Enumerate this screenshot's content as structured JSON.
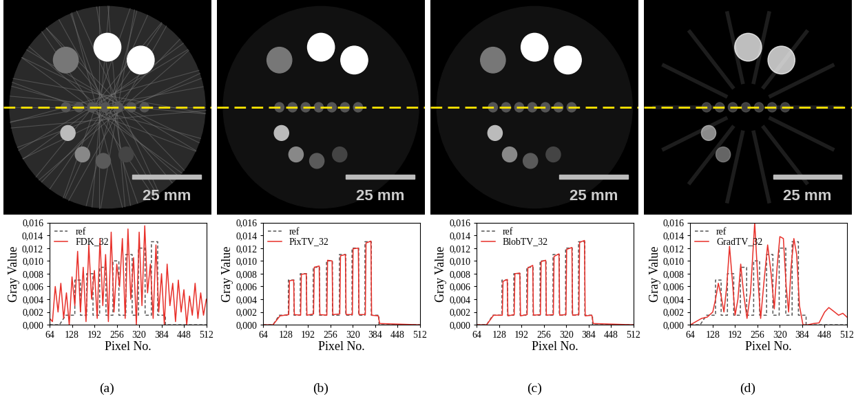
{
  "chart_data": [
    {
      "type": "line",
      "caption": "(a)",
      "scale_bar": "25 mm",
      "x_label": "Pixel No.",
      "y_label": "Gray Value",
      "xlim": [
        64,
        512
      ],
      "xticks": [
        64,
        128,
        192,
        256,
        320,
        384,
        448,
        512
      ],
      "ylim": [
        0,
        0.016
      ],
      "yticks": [
        {
          "value": 0,
          "label": "0,000"
        },
        {
          "value": 0.002,
          "label": "0,002"
        },
        {
          "value": 0.004,
          "label": "0,004"
        },
        {
          "value": 0.006,
          "label": "0,006"
        },
        {
          "value": 0.008,
          "label": "0,008"
        },
        {
          "value": 0.01,
          "label": "0,010"
        },
        {
          "value": 0.012,
          "label": "0,012"
        },
        {
          "value": 0.014,
          "label": "0,014"
        },
        {
          "value": 0.016,
          "label": "0,016"
        }
      ],
      "grid": false,
      "legend": "upper left",
      "series": [
        {
          "name": "ref",
          "color": "#555555",
          "line_style": "dashed",
          "x": [
            64,
            92,
            110,
            136,
            136,
            152,
            152,
            170,
            170,
            188,
            188,
            207,
            207,
            225,
            225,
            245,
            245,
            262,
            262,
            282,
            282,
            300,
            300,
            318,
            318,
            337,
            337,
            355,
            355,
            373,
            373,
            395,
            395,
            512
          ],
          "values": [
            0,
            0,
            0.0015,
            0.0015,
            0.007,
            0.007,
            0.0015,
            0.0015,
            0.008,
            0.008,
            0.0015,
            0.0015,
            0.009,
            0.009,
            0.0015,
            0.0015,
            0.01,
            0.01,
            0.0015,
            0.0015,
            0.011,
            0.011,
            0.0015,
            0.0015,
            0.012,
            0.012,
            0.0015,
            0.0015,
            0.013,
            0.013,
            0.0015,
            0.0015,
            0,
            0
          ]
        },
        {
          "name": "FDK_32",
          "color": "#e8302a",
          "line_style": "solid",
          "x": [
            64,
            72,
            80,
            88,
            96,
            104,
            112,
            120,
            128,
            136,
            144,
            152,
            160,
            168,
            176,
            184,
            192,
            200,
            208,
            216,
            224,
            232,
            240,
            248,
            256,
            264,
            272,
            280,
            288,
            296,
            304,
            312,
            320,
            328,
            336,
            344,
            352,
            360,
            368,
            376,
            384,
            392,
            400,
            408,
            416,
            424,
            432,
            440,
            448,
            456,
            464,
            472,
            480,
            488,
            496,
            504,
            512
          ],
          "values": [
            0.001,
            0.0005,
            0.006,
            0.002,
            0.0065,
            0.001,
            0.005,
            0.0,
            0.0075,
            0.003,
            0.0115,
            0.002,
            0.009,
            0.0005,
            0.0125,
            0.004,
            0.0085,
            0.001,
            0.0135,
            0.003,
            0.011,
            0.0005,
            0.0145,
            0.002,
            0.0095,
            0.006,
            0.0135,
            0.001,
            0.015,
            0.004,
            0.0105,
            0.0,
            0.0145,
            0.003,
            0.0155,
            0.005,
            0.0095,
            0.001,
            0.0125,
            0.002,
            0.008,
            0.0,
            0.0095,
            0.003,
            0.0065,
            0.0005,
            0.007,
            0.002,
            0.0055,
            0.0,
            0.0045,
            0.0015,
            0.0065,
            0.001,
            0.005,
            0.0015,
            0.004
          ]
        }
      ]
    },
    {
      "type": "line",
      "caption": "(b)",
      "scale_bar": "25 mm",
      "x_label": "Pixel No.",
      "y_label": "Gray Value",
      "xlim": [
        64,
        512
      ],
      "xticks": [
        64,
        128,
        192,
        256,
        320,
        384,
        448,
        512
      ],
      "ylim": [
        0,
        0.016
      ],
      "yticks": [
        {
          "value": 0,
          "label": "0,000"
        },
        {
          "value": 0.002,
          "label": "0,002"
        },
        {
          "value": 0.004,
          "label": "0,004"
        },
        {
          "value": 0.006,
          "label": "0,006"
        },
        {
          "value": 0.008,
          "label": "0,008"
        },
        {
          "value": 0.01,
          "label": "0,010"
        },
        {
          "value": 0.012,
          "label": "0,012"
        },
        {
          "value": 0.014,
          "label": "0,014"
        },
        {
          "value": 0.016,
          "label": "0,016"
        }
      ],
      "grid": false,
      "legend": "upper left",
      "series": [
        {
          "name": "ref",
          "color": "#555555",
          "line_style": "dashed",
          "x": [
            64,
            92,
            110,
            136,
            136,
            152,
            152,
            170,
            170,
            188,
            188,
            207,
            207,
            225,
            225,
            245,
            245,
            262,
            262,
            282,
            282,
            300,
            300,
            318,
            318,
            337,
            337,
            355,
            355,
            373,
            373,
            395,
            395,
            512
          ],
          "values": [
            0,
            0,
            0.0015,
            0.0015,
            0.007,
            0.007,
            0.0015,
            0.0015,
            0.008,
            0.008,
            0.0015,
            0.0015,
            0.009,
            0.009,
            0.0015,
            0.0015,
            0.01,
            0.01,
            0.0015,
            0.0015,
            0.011,
            0.011,
            0.0015,
            0.0015,
            0.012,
            0.012,
            0.0015,
            0.0015,
            0.013,
            0.013,
            0.0015,
            0.0015,
            0,
            0
          ]
        },
        {
          "name": "PixTV_32",
          "color": "#e8302a",
          "line_style": "solid",
          "x": [
            64,
            92,
            112,
            137,
            139,
            151,
            153,
            171,
            173,
            187,
            189,
            208,
            210,
            224,
            226,
            246,
            248,
            261,
            263,
            283,
            285,
            299,
            301,
            319,
            321,
            336,
            338,
            356,
            358,
            372,
            374,
            393,
            397,
            512
          ],
          "values": [
            0,
            0,
            0.0014,
            0.0016,
            0.0069,
            0.007,
            0.0016,
            0.0015,
            0.0079,
            0.008,
            0.0015,
            0.0017,
            0.009,
            0.0092,
            0.0016,
            0.0015,
            0.0101,
            0.01,
            0.0016,
            0.0017,
            0.0108,
            0.011,
            0.0016,
            0.0016,
            0.0119,
            0.012,
            0.0016,
            0.0016,
            0.0128,
            0.0131,
            0.0015,
            0.0014,
            0.0002,
            0
          ]
        }
      ]
    },
    {
      "type": "line",
      "caption": "(c)",
      "scale_bar": "25 mm",
      "x_label": "Pixel No.",
      "y_label": "Gray Value",
      "xlim": [
        64,
        512
      ],
      "xticks": [
        64,
        128,
        192,
        256,
        320,
        384,
        448,
        512
      ],
      "ylim": [
        0,
        0.016
      ],
      "yticks": [
        {
          "value": 0,
          "label": "0,000"
        },
        {
          "value": 0.002,
          "label": "0,002"
        },
        {
          "value": 0.004,
          "label": "0,004"
        },
        {
          "value": 0.006,
          "label": "0,006"
        },
        {
          "value": 0.008,
          "label": "0,008"
        },
        {
          "value": 0.01,
          "label": "0,010"
        },
        {
          "value": 0.012,
          "label": "0,012"
        },
        {
          "value": 0.014,
          "label": "0,014"
        },
        {
          "value": 0.016,
          "label": "0,016"
        }
      ],
      "grid": false,
      "legend": "upper left",
      "series": [
        {
          "name": "ref",
          "color": "#555555",
          "line_style": "dashed",
          "x": [
            64,
            92,
            110,
            136,
            136,
            152,
            152,
            170,
            170,
            188,
            188,
            207,
            207,
            225,
            225,
            245,
            245,
            262,
            262,
            282,
            282,
            300,
            300,
            318,
            318,
            337,
            337,
            355,
            355,
            373,
            373,
            395,
            395,
            512
          ],
          "values": [
            0,
            0,
            0.0015,
            0.0015,
            0.007,
            0.007,
            0.0015,
            0.0015,
            0.008,
            0.008,
            0.0015,
            0.0015,
            0.009,
            0.009,
            0.0015,
            0.0015,
            0.01,
            0.01,
            0.0015,
            0.0015,
            0.011,
            0.011,
            0.0015,
            0.0015,
            0.012,
            0.012,
            0.0015,
            0.0015,
            0.013,
            0.013,
            0.0015,
            0.0015,
            0,
            0
          ]
        },
        {
          "name": "BlobTV_32",
          "color": "#e8302a",
          "line_style": "solid",
          "x": [
            64,
            92,
            112,
            137,
            139,
            151,
            153,
            171,
            173,
            187,
            189,
            208,
            210,
            224,
            226,
            246,
            248,
            261,
            263,
            283,
            285,
            299,
            301,
            319,
            321,
            336,
            338,
            356,
            358,
            372,
            374,
            393,
            397,
            512
          ],
          "values": [
            0,
            0,
            0.0015,
            0.0015,
            0.0068,
            0.0071,
            0.0014,
            0.0016,
            0.008,
            0.0081,
            0.0014,
            0.0016,
            0.0089,
            0.0093,
            0.0015,
            0.0016,
            0.0099,
            0.0101,
            0.0015,
            0.0016,
            0.0107,
            0.0111,
            0.0015,
            0.0016,
            0.0118,
            0.0121,
            0.0015,
            0.0016,
            0.0129,
            0.0132,
            0.0014,
            0.0015,
            0.0002,
            0
          ]
        }
      ]
    },
    {
      "type": "line",
      "caption": "(d)",
      "scale_bar": "25 mm",
      "x_label": "Pixel No.",
      "y_label": "Gray Value",
      "xlim": [
        64,
        512
      ],
      "xticks": [
        64,
        128,
        192,
        256,
        320,
        384,
        448,
        512
      ],
      "ylim": [
        0,
        0.016
      ],
      "yticks": [
        {
          "value": 0,
          "label": "0,000"
        },
        {
          "value": 0.002,
          "label": "0,002"
        },
        {
          "value": 0.004,
          "label": "0,004"
        },
        {
          "value": 0.006,
          "label": "0,006"
        },
        {
          "value": 0.008,
          "label": "0,008"
        },
        {
          "value": 0.01,
          "label": "0,010"
        },
        {
          "value": 0.012,
          "label": "0,012"
        },
        {
          "value": 0.014,
          "label": "0,014"
        },
        {
          "value": 0.016,
          "label": "0,016"
        }
      ],
      "grid": false,
      "legend": "upper left",
      "series": [
        {
          "name": "ref",
          "color": "#555555",
          "line_style": "dashed",
          "x": [
            64,
            92,
            110,
            136,
            136,
            152,
            152,
            170,
            170,
            188,
            188,
            207,
            207,
            225,
            225,
            245,
            245,
            262,
            262,
            282,
            282,
            300,
            300,
            318,
            318,
            337,
            337,
            355,
            355,
            373,
            373,
            395,
            395,
            512
          ],
          "values": [
            0,
            0,
            0.0015,
            0.0015,
            0.007,
            0.007,
            0.0015,
            0.0015,
            0.008,
            0.008,
            0.0015,
            0.0015,
            0.009,
            0.009,
            0.0015,
            0.0015,
            0.01,
            0.01,
            0.0015,
            0.0015,
            0.011,
            0.011,
            0.0015,
            0.0015,
            0.012,
            0.012,
            0.0015,
            0.0015,
            0.013,
            0.013,
            0.0015,
            0.0015,
            0,
            0
          ]
        },
        {
          "name": "GradTV_32",
          "color": "#e8302a",
          "line_style": "solid",
          "x": [
            64,
            80,
            96,
            112,
            128,
            136,
            144,
            152,
            160,
            168,
            176,
            184,
            192,
            200,
            208,
            216,
            226,
            236,
            248,
            256,
            265,
            275,
            285,
            295,
            304,
            312,
            320,
            330,
            338,
            345,
            352,
            360,
            368,
            376,
            386,
            400,
            416,
            432,
            448,
            460,
            472,
            488,
            500,
            512
          ],
          "values": [
            0,
            0.0005,
            0.001,
            0.0012,
            0.002,
            0.004,
            0.0065,
            0.0045,
            0.002,
            0.006,
            0.0123,
            0.007,
            0.0015,
            0.004,
            0.0095,
            0.005,
            0.001,
            0.005,
            0.016,
            0.008,
            0.001,
            0.007,
            0.0125,
            0.008,
            0.0025,
            0.009,
            0.0138,
            0.0135,
            0.006,
            0.002,
            0.009,
            0.0135,
            0.011,
            0.003,
            0.0,
            0.0,
            0.0002,
            0.0003,
            0.002,
            0.0027,
            0.0022,
            0.0015,
            0.0018,
            0.0012
          ]
        }
      ]
    }
  ]
}
